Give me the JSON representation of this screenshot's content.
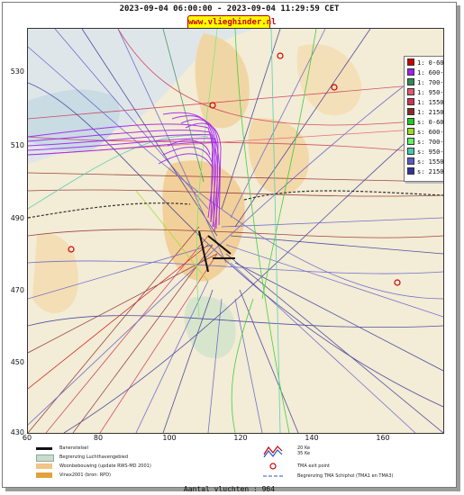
{
  "header": {
    "title": "2023-09-04 06:00:00 - 2023-09-04 11:29:59 CET",
    "site": "www.vlieghinder.nl"
  },
  "axes": {
    "y_ticks": [
      "530",
      "510",
      "490",
      "470",
      "450",
      "430"
    ],
    "x_ticks": [
      "60",
      "80",
      "100",
      "120",
      "140",
      "160"
    ]
  },
  "legend": {
    "items": [
      {
        "label": "1: 0-600m",
        "color": "#cc0000"
      },
      {
        "label": "1: 600-700m",
        "color": "#a020f0"
      },
      {
        "label": "1: 700-950m",
        "color": "#2e8b57"
      },
      {
        "label": "1: 950-1550m",
        "color": "#e05a6a"
      },
      {
        "label": "1: 1550-2150m",
        "color": "#cc3355"
      },
      {
        "label": "1: 2150-3650m",
        "color": "#8b2a2a"
      },
      {
        "label": "s: 0-600m",
        "color": "#22cc22"
      },
      {
        "label": "s: 600-700m",
        "color": "#99dd22"
      },
      {
        "label": "s: 700-950m",
        "color": "#66ee66"
      },
      {
        "label": "s: 950-1550m",
        "color": "#44ccaa"
      },
      {
        "label": "s: 1550-2150m",
        "color": "#5a5acc"
      },
      {
        "label": "s: 2150-3650m",
        "color": "#333399"
      }
    ]
  },
  "bottom_legend": {
    "runway": "Banenstelsel",
    "airport": "Begrenzing Luchthavengebied",
    "housing": "Woonbebouwing (update RWS-MD 2001)",
    "vinex": "Vinex2001 (bron: RPD)",
    "contour1": "20 Ke",
    "contour2": "35 Ke",
    "tma_exit": "TMA exit point",
    "tma_boundary": "Begrenzing TMA Schiphol (TMA1 en TMA3)"
  },
  "footer": {
    "count": "Aantal vluchten : 964"
  },
  "colors": {
    "sea": "#c7d9e4",
    "land": "#f3ecd6",
    "urban": "#f1c98a",
    "green_zone": "#cfe3c9"
  }
}
